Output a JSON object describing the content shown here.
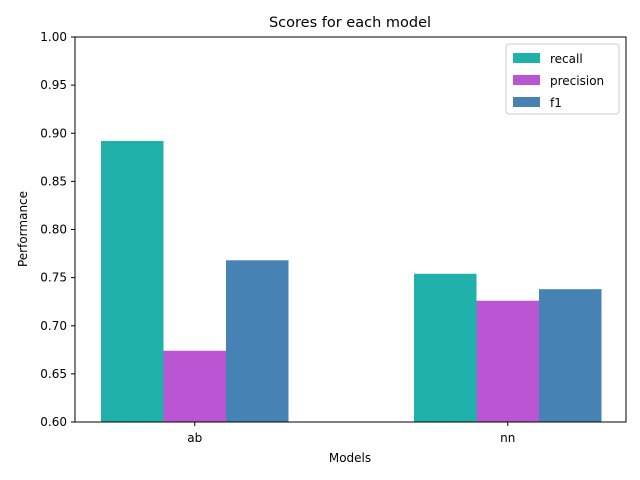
{
  "chart_data": {
    "type": "bar",
    "title": "Scores for each model",
    "xlabel": "Models",
    "ylabel": "Performance",
    "categories": [
      "ab",
      "nn"
    ],
    "series": [
      {
        "name": "recall",
        "values": [
          0.892,
          0.754
        ],
        "color": "#20b2aa"
      },
      {
        "name": "precision",
        "values": [
          0.674,
          0.726
        ],
        "color": "#ba55d3"
      },
      {
        "name": "f1",
        "values": [
          0.768,
          0.738
        ],
        "color": "#4682b4"
      }
    ],
    "ylim": [
      0.6,
      1.0
    ],
    "yticks": [
      "0.60",
      "0.65",
      "0.70",
      "0.75",
      "0.80",
      "0.85",
      "0.90",
      "0.95",
      "1.00"
    ],
    "grid": false,
    "legend_position": "top-right"
  }
}
